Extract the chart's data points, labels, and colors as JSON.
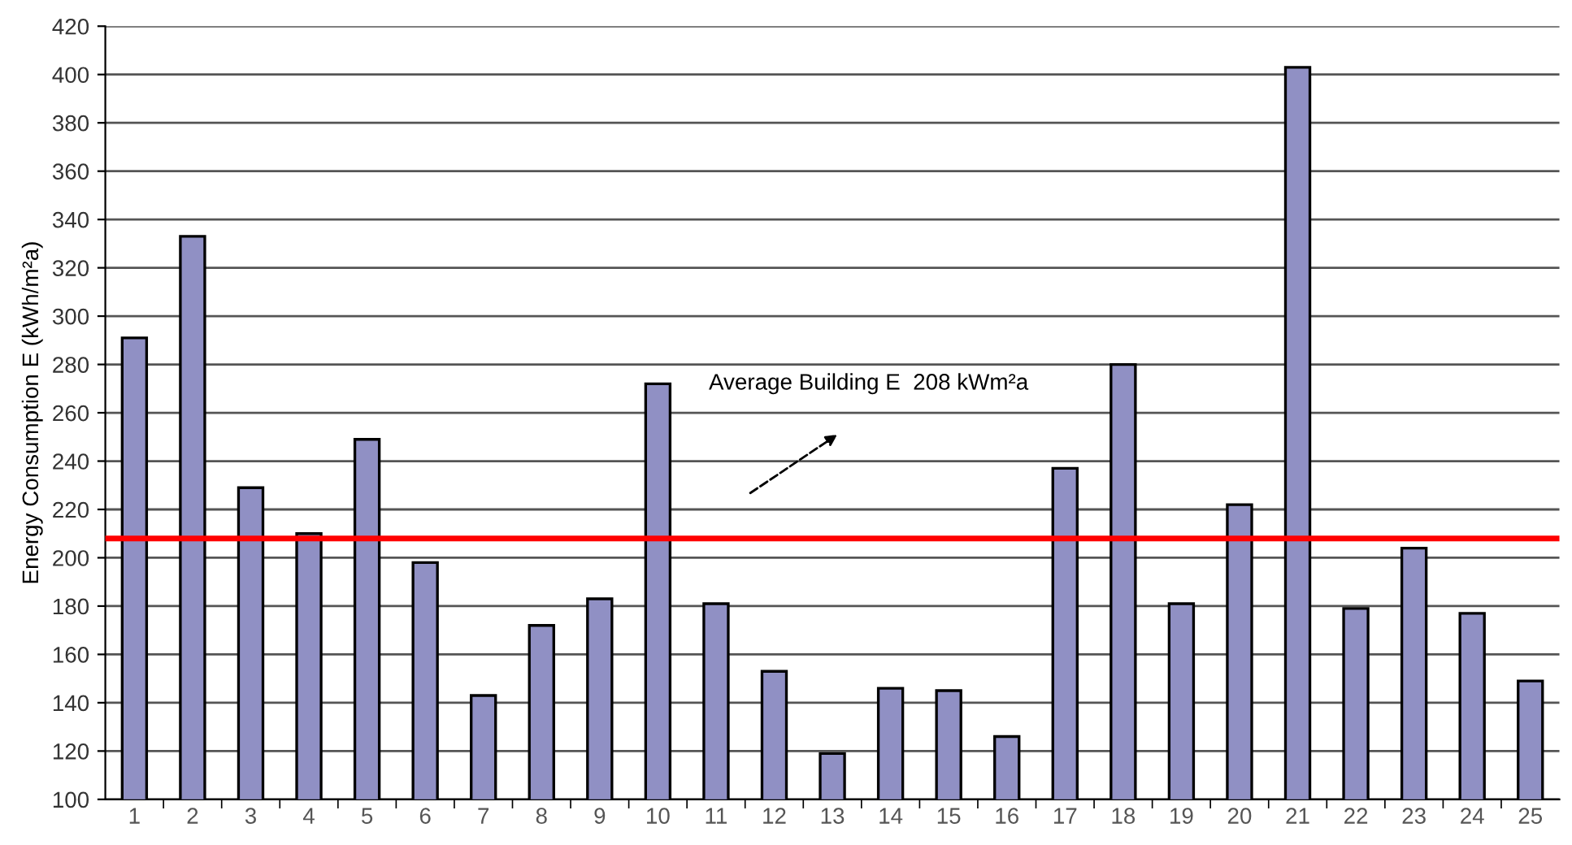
{
  "chart_data": {
    "type": "bar",
    "ylabel": "Energy Consumption E (kWh/m²a)",
    "categories": [
      "1",
      "2",
      "3",
      "4",
      "5",
      "6",
      "7",
      "8",
      "9",
      "10",
      "11",
      "12",
      "13",
      "14",
      "15",
      "16",
      "17",
      "18",
      "19",
      "20",
      "21",
      "22",
      "23",
      "24",
      "25"
    ],
    "values": [
      291,
      333,
      229,
      210,
      249,
      198,
      143,
      172,
      183,
      272,
      181,
      153,
      119,
      146,
      145,
      126,
      237,
      280,
      181,
      222,
      403,
      179,
      204,
      177,
      149
    ],
    "color": "#9090c4",
    "ylim": [
      100,
      420
    ],
    "yticks": [
      100,
      120,
      140,
      160,
      180,
      200,
      220,
      240,
      260,
      280,
      300,
      320,
      340,
      360,
      380,
      400,
      420
    ],
    "grid": "y",
    "legend": false,
    "annotations": [
      "Average Building E  208 kWm²a"
    ],
    "ref_lines": [
      {
        "axis": "y",
        "value": 208,
        "color": "#ff0000"
      }
    ]
  }
}
